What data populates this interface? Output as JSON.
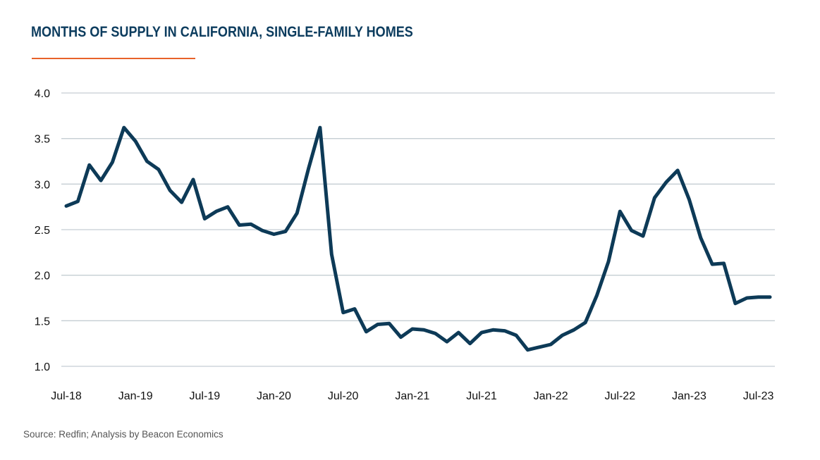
{
  "chart_data": {
    "type": "line",
    "title": "MONTHS OF SUPPLY IN CALIFORNIA, SINGLE-FAMILY HOMES",
    "xlabel": "",
    "ylabel": "",
    "ylim": [
      1.0,
      4.0
    ],
    "yticks": [
      "1.0",
      "1.5",
      "2.0",
      "2.5",
      "3.0",
      "3.5",
      "4.0"
    ],
    "xticks": [
      "Jul-18",
      "Jan-19",
      "Jul-19",
      "Jan-20",
      "Jul-20",
      "Jan-21",
      "Jul-21",
      "Jan-22",
      "Jul-22",
      "Jan-23",
      "Jul-23"
    ],
    "grid": true,
    "legend": "none",
    "line_color": "#0d3a57",
    "series": [
      {
        "x": [
          "Jul-18",
          "Aug-18",
          "Sep-18",
          "Oct-18",
          "Nov-18",
          "Dec-18",
          "Jan-19",
          "Feb-19",
          "Mar-19",
          "Apr-19",
          "May-19",
          "Jun-19",
          "Jul-19",
          "Aug-19",
          "Sep-19",
          "Oct-19",
          "Nov-19",
          "Dec-19",
          "Jan-20",
          "Feb-20",
          "Mar-20",
          "Apr-20",
          "May-20",
          "Jun-20",
          "Jul-20",
          "Aug-20",
          "Sep-20",
          "Oct-20",
          "Nov-20",
          "Dec-20",
          "Jan-21",
          "Feb-21",
          "Mar-21",
          "Apr-21",
          "May-21",
          "Jun-21",
          "Jul-21",
          "Aug-21",
          "Sep-21",
          "Oct-21",
          "Nov-21",
          "Dec-21",
          "Jan-22",
          "Feb-22",
          "Mar-22",
          "Apr-22",
          "May-22",
          "Jun-22",
          "Jul-22",
          "Aug-22",
          "Sep-22",
          "Oct-22",
          "Nov-22",
          "Dec-22",
          "Jan-23",
          "Feb-23",
          "Mar-23",
          "Apr-23",
          "May-23",
          "Jun-23",
          "Jul-23",
          "Aug-23"
        ],
        "values": [
          2.76,
          2.81,
          3.21,
          3.04,
          3.24,
          3.62,
          3.47,
          3.25,
          3.16,
          2.93,
          2.8,
          3.05,
          2.62,
          2.7,
          2.75,
          2.55,
          2.56,
          2.49,
          2.45,
          2.48,
          2.68,
          3.17,
          3.62,
          2.23,
          1.59,
          1.63,
          1.38,
          1.46,
          1.47,
          1.32,
          1.41,
          1.4,
          1.36,
          1.27,
          1.37,
          1.25,
          1.37,
          1.4,
          1.39,
          1.34,
          1.18,
          1.21,
          1.24,
          1.34,
          1.4,
          1.48,
          1.78,
          2.15,
          2.7,
          2.49,
          2.43,
          2.85,
          3.02,
          3.15,
          2.83,
          2.41,
          2.12,
          2.13,
          1.69,
          1.75,
          1.76,
          1.76
        ]
      }
    ]
  },
  "source": "Source: Redfin; Analysis by Beacon Economics"
}
